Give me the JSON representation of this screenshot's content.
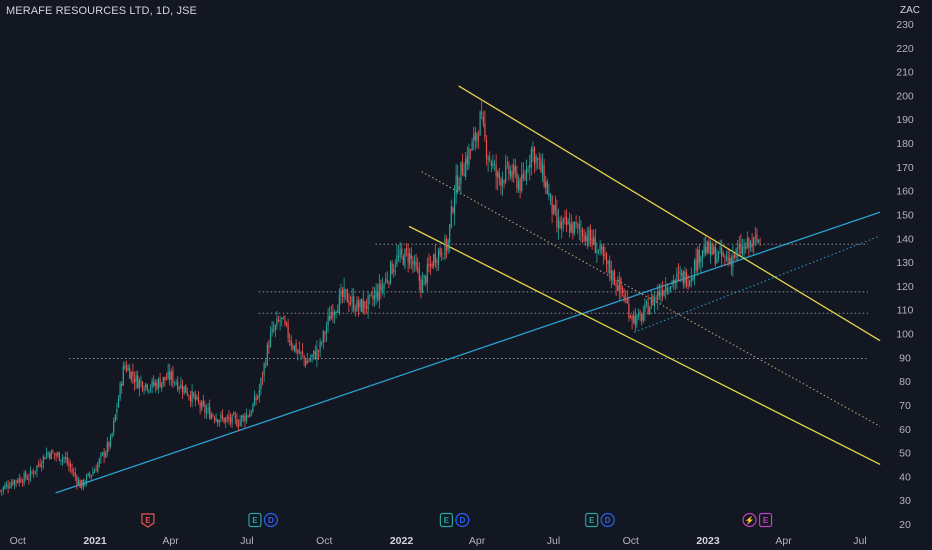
{
  "header": {
    "symbol_title": "MERAFE RESOURCES LTD, 1D, JSE",
    "currency": "ZAC"
  },
  "colors": {
    "background": "#131722",
    "up": "#26a69a",
    "down": "#ef5350",
    "channel": "#e5d54a",
    "trendline": "#2aa0d0",
    "level": "#8a8e99",
    "earnings": "#ef5350",
    "earnings_alt": "#c43cc3",
    "dividend": "#2962ff",
    "earnings_reported": "#26a69a"
  },
  "chart_data": {
    "type": "candlestick",
    "ylim": [
      20,
      235
    ],
    "y_ticks": [
      20,
      30,
      40,
      50,
      60,
      70,
      80,
      90,
      100,
      110,
      120,
      130,
      140,
      150,
      160,
      170,
      180,
      190,
      200,
      210,
      220,
      230
    ],
    "x_ticks": [
      {
        "label": "Oct",
        "date": "2020-10-01",
        "bold": false
      },
      {
        "label": "2021",
        "date": "2021-01-01",
        "bold": true
      },
      {
        "label": "Apr",
        "date": "2021-04-01",
        "bold": false
      },
      {
        "label": "Jul",
        "date": "2021-07-01",
        "bold": false
      },
      {
        "label": "Oct",
        "date": "2021-10-01",
        "bold": false
      },
      {
        "label": "2022",
        "date": "2022-01-01",
        "bold": true
      },
      {
        "label": "Apr",
        "date": "2022-04-01",
        "bold": false
      },
      {
        "label": "Jul",
        "date": "2022-07-01",
        "bold": false
      },
      {
        "label": "Oct",
        "date": "2022-10-01",
        "bold": false
      },
      {
        "label": "2023",
        "date": "2023-01-01",
        "bold": true
      },
      {
        "label": "Apr",
        "date": "2023-04-01",
        "bold": false
      },
      {
        "label": "Jul",
        "date": "2023-07-01",
        "bold": false
      }
    ],
    "price_path": [
      [
        "2020-09-10",
        34
      ],
      [
        "2020-09-25",
        38
      ],
      [
        "2020-10-15",
        40
      ],
      [
        "2020-11-05",
        50
      ],
      [
        "2020-11-25",
        48
      ],
      [
        "2020-12-15",
        36
      ],
      [
        "2021-01-01",
        43
      ],
      [
        "2021-01-20",
        55
      ],
      [
        "2021-02-05",
        87
      ],
      [
        "2021-02-20",
        80
      ],
      [
        "2021-03-10",
        78
      ],
      [
        "2021-04-01",
        82
      ],
      [
        "2021-04-20",
        76
      ],
      [
        "2021-05-10",
        68
      ],
      [
        "2021-06-01",
        64
      ],
      [
        "2021-06-20",
        63
      ],
      [
        "2021-07-05",
        67
      ],
      [
        "2021-07-15",
        75
      ],
      [
        "2021-07-28",
        98
      ],
      [
        "2021-08-10",
        106
      ],
      [
        "2021-08-25",
        95
      ],
      [
        "2021-09-10",
        88
      ],
      [
        "2021-09-25",
        93
      ],
      [
        "2021-10-10",
        110
      ],
      [
        "2021-10-25",
        116
      ],
      [
        "2021-11-10",
        111
      ],
      [
        "2021-11-25",
        113
      ],
      [
        "2021-12-10",
        120
      ],
      [
        "2021-12-25",
        131
      ],
      [
        "2022-01-10",
        133
      ],
      [
        "2022-01-25",
        120
      ],
      [
        "2022-02-10",
        133
      ],
      [
        "2022-02-25",
        137
      ],
      [
        "2022-03-05",
        160
      ],
      [
        "2022-03-15",
        170
      ],
      [
        "2022-03-28",
        180
      ],
      [
        "2022-04-05",
        190
      ],
      [
        "2022-04-12",
        178
      ],
      [
        "2022-04-25",
        165
      ],
      [
        "2022-05-10",
        168
      ],
      [
        "2022-05-25",
        162
      ],
      [
        "2022-06-05",
        178
      ],
      [
        "2022-06-20",
        165
      ],
      [
        "2022-07-05",
        145
      ],
      [
        "2022-07-20",
        145
      ],
      [
        "2022-08-05",
        143
      ],
      [
        "2022-08-20",
        137
      ],
      [
        "2022-09-05",
        127
      ],
      [
        "2022-09-20",
        118
      ],
      [
        "2022-10-01",
        108
      ],
      [
        "2022-10-10",
        105
      ],
      [
        "2022-10-25",
        113
      ],
      [
        "2022-11-10",
        120
      ],
      [
        "2022-11-25",
        123
      ],
      [
        "2022-12-10",
        124
      ],
      [
        "2022-12-25",
        136
      ],
      [
        "2023-01-10",
        133
      ],
      [
        "2023-01-25",
        131
      ],
      [
        "2023-02-10",
        135
      ],
      [
        "2023-02-25",
        138
      ],
      [
        "2023-03-05",
        140
      ]
    ],
    "horizontal_levels": [
      {
        "value": 137.5,
        "from": "2021-12-01"
      },
      {
        "value": 117.5,
        "from": "2021-07-15"
      },
      {
        "value": 108.5,
        "from": "2021-07-15"
      },
      {
        "value": 89.5,
        "from": "2020-12-01"
      }
    ],
    "trendlines": [
      {
        "name": "support",
        "color_key": "trendline",
        "style": "solid",
        "from": [
          "2020-11-15",
          33
        ],
        "to": [
          "2023-07-25",
          151
        ]
      },
      {
        "name": "support-dotted",
        "color_key": "trendline",
        "style": "dotted",
        "from": [
          "2022-10-05",
          100.5
        ],
        "to": [
          "2023-07-25",
          141
        ]
      }
    ],
    "channel": {
      "color_key": "channel",
      "upper": {
        "from": [
          "2022-03-10",
          204
        ],
        "to": [
          "2023-07-25",
          97
        ]
      },
      "middle": {
        "from": [
          "2022-01-25",
          168
        ],
        "to": [
          "2023-07-25",
          61
        ],
        "style": "dotted"
      },
      "lower": {
        "from": [
          "2022-01-10",
          145
        ],
        "to": [
          "2023-07-25",
          45
        ]
      }
    },
    "events": [
      {
        "date": "2021-03-05",
        "badges": [
          {
            "text": "E",
            "type": "earnings"
          }
        ]
      },
      {
        "date": "2021-07-20",
        "badges": [
          {
            "text": "E",
            "type": "earnings_reported"
          },
          {
            "text": "D",
            "type": "dividend"
          }
        ]
      },
      {
        "date": "2022-03-05",
        "badges": [
          {
            "text": "E",
            "type": "earnings_reported"
          },
          {
            "text": "D",
            "type": "dividend"
          }
        ]
      },
      {
        "date": "2022-08-25",
        "badges": [
          {
            "text": "E",
            "type": "earnings_reported"
          },
          {
            "text": "D",
            "type": "dividend"
          }
        ]
      },
      {
        "date": "2023-03-01",
        "badges": [
          {
            "text": "⚡",
            "type": "earnings_alt"
          },
          {
            "text": "E",
            "type": "earnings_alt"
          }
        ]
      }
    ]
  }
}
